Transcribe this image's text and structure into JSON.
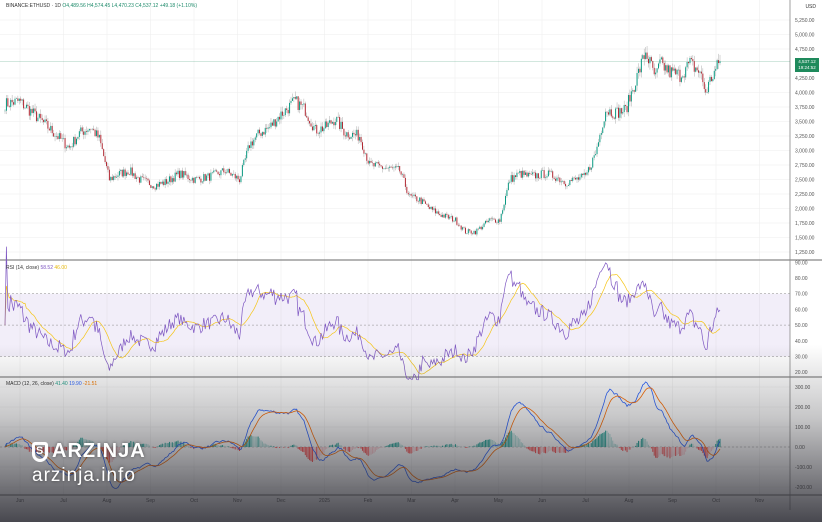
{
  "header": {
    "symbol": "BINANCE:ETHUSD · 1D",
    "open": "O4,489.56",
    "high": "H4,574.45",
    "low": "L4,470.23",
    "close": "C4,537.12",
    "change": "+49.18 (+1.10%)"
  },
  "price_axis": {
    "currency": "USD",
    "last_price": "4,537.12",
    "countdown": "19:24:52"
  },
  "rsi_legend": {
    "label": "RSI (14, close)",
    "value": "58.52",
    "ma": "46.00"
  },
  "macd_legend": {
    "label": "MACD (12, 26, close)",
    "hist": "41.40",
    "macd": "19.90",
    "signal": "-21.51"
  },
  "watermark": {
    "brand": "ARZINJA",
    "site": "arzinja.info"
  },
  "colors": {
    "up": "#089981",
    "down": "#b22833",
    "rsi": "#7e57c2",
    "rsi_ma": "#f5c518",
    "macd": "#2962ff",
    "signal": "#ff6d00"
  },
  "chart_data": [
    {
      "type": "candlestick",
      "title": "BINANCE:ETHUSD 1D",
      "ylim": [
        1250,
        5250
      ],
      "yticks": [
        "5,250.00",
        "5,000.00",
        "4,750.00",
        "4,250.00",
        "4,000.00",
        "3,750.00",
        "3,500.00",
        "3,250.00",
        "3,000.00",
        "2,750.00",
        "2,500.00",
        "2,250.00",
        "2,000.00",
        "1,750.00",
        "1,500.00",
        "1,250.00"
      ],
      "xticks": [
        "Jun",
        "Jul",
        "Aug",
        "Sep",
        "Oct",
        "Nov",
        "Dec",
        "2025",
        "Feb",
        "Mar",
        "Apr",
        "May",
        "Jun",
        "Jul",
        "Aug",
        "Sep",
        "Oct",
        "Nov"
      ],
      "key_closes": [
        [
          0,
          3800
        ],
        [
          10,
          3850
        ],
        [
          17,
          3700
        ],
        [
          28,
          3450
        ],
        [
          45,
          3050
        ],
        [
          52,
          3300
        ],
        [
          60,
          3400
        ],
        [
          66,
          3200
        ],
        [
          73,
          2500
        ],
        [
          80,
          2600
        ],
        [
          87,
          2650
        ],
        [
          94,
          2500
        ],
        [
          105,
          2400
        ],
        [
          112,
          2450
        ],
        [
          122,
          2600
        ],
        [
          133,
          2500
        ],
        [
          143,
          2550
        ],
        [
          154,
          2650
        ],
        [
          164,
          2500
        ],
        [
          171,
          3100
        ],
        [
          178,
          3300
        ],
        [
          185,
          3400
        ],
        [
          192,
          3600
        ],
        [
          203,
          3850
        ],
        [
          210,
          3700
        ],
        [
          217,
          3350
        ],
        [
          224,
          3400
        ],
        [
          231,
          3550
        ],
        [
          238,
          3300
        ],
        [
          248,
          3250
        ],
        [
          255,
          2750
        ],
        [
          266,
          2700
        ],
        [
          276,
          2650
        ],
        [
          283,
          2200
        ],
        [
          290,
          2150
        ],
        [
          297,
          2000
        ],
        [
          304,
          1900
        ],
        [
          315,
          1800
        ],
        [
          322,
          1600
        ],
        [
          329,
          1600
        ],
        [
          339,
          1800
        ],
        [
          346,
          1800
        ],
        [
          353,
          2500
        ],
        [
          360,
          2600
        ],
        [
          367,
          2550
        ],
        [
          378,
          2600
        ],
        [
          385,
          2550
        ],
        [
          392,
          2450
        ],
        [
          399,
          2500
        ],
        [
          406,
          2550
        ],
        [
          413,
          2950
        ],
        [
          420,
          3700
        ],
        [
          427,
          3650
        ],
        [
          434,
          3700
        ],
        [
          441,
          4200
        ],
        [
          448,
          4700
        ],
        [
          455,
          4250
        ],
        [
          458,
          4500
        ],
        [
          465,
          4350
        ],
        [
          472,
          4300
        ],
        [
          479,
          4500
        ],
        [
          486,
          4350
        ],
        [
          490,
          4000
        ],
        [
          493,
          4200
        ],
        [
          500,
          4537
        ]
      ]
    },
    {
      "type": "line",
      "title": "RSI (14, close)",
      "ylim": [
        20,
        90
      ],
      "yticks": [
        "90.00",
        "80.00",
        "70.00",
        "60.00",
        "50.00",
        "40.00",
        "30.00",
        "20.00"
      ],
      "bands": [
        30,
        50,
        70
      ]
    },
    {
      "type": "bar+line",
      "title": "MACD (12, 26, close)",
      "ylim": [
        -250,
        350
      ],
      "yticks": [
        "300.00",
        "200.00",
        "100.00",
        "0.00",
        "-100.00",
        "-200.00"
      ]
    }
  ]
}
